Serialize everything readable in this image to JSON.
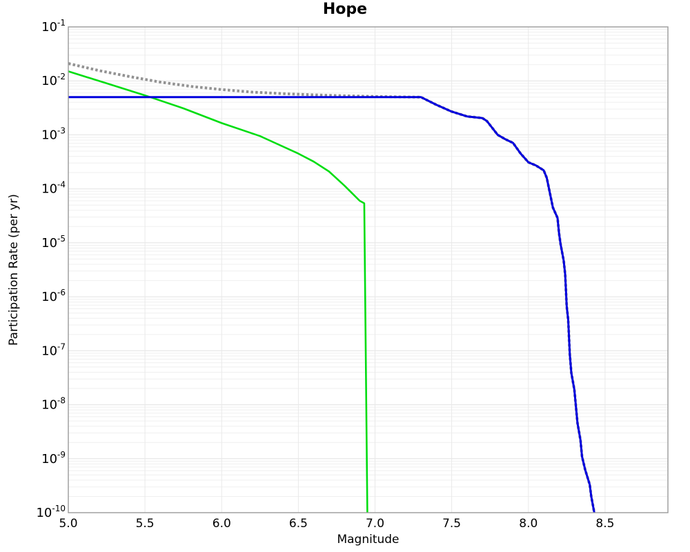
{
  "chart_data": {
    "type": "line",
    "title": "Hope",
    "xlabel": "Magnitude",
    "ylabel": "Participation Rate (per yr)",
    "x_min": 5.0,
    "x_max": 8.91,
    "y_exp_top": -1,
    "y_exp_bottom": -10,
    "x_ticks": [
      5.0,
      5.5,
      6.0,
      6.5,
      7.0,
      7.5,
      8.0,
      8.5
    ],
    "x_tick_labels": [
      "5.0",
      "5.5",
      "6.0",
      "6.5",
      "7.0",
      "7.5",
      "8.0",
      "8.5"
    ],
    "y_tick_exponents": [
      "-1",
      "-2",
      "-3",
      "-4",
      "-5",
      "-6",
      "-7",
      "-8",
      "-9",
      "-10"
    ],
    "grid": {
      "vertical_step": 0.5,
      "log_minor_lines": true,
      "legend": "none"
    },
    "colors": {
      "minor_grid": "#efefef",
      "major_grid": "#e2e2e2",
      "vertical_grid": "#e9e9e9",
      "frame": "#9a9a9a",
      "text": "#000000"
    },
    "series": [
      {
        "name": "dotted-gray-curve",
        "style": "dotted",
        "color": "#929292",
        "width": 4,
        "points": [
          [
            5.0,
            0.021
          ],
          [
            5.2,
            0.0155
          ],
          [
            5.4,
            0.012
          ],
          [
            5.6,
            0.0095
          ],
          [
            5.8,
            0.0079
          ],
          [
            6.0,
            0.0069
          ],
          [
            6.2,
            0.0062
          ],
          [
            6.4,
            0.0058
          ],
          [
            6.6,
            0.0055
          ],
          [
            6.8,
            0.0053
          ],
          [
            7.0,
            0.00515
          ],
          [
            7.15,
            0.00505
          ],
          [
            7.3,
            0.005
          ],
          [
            7.4,
            0.0036
          ],
          [
            7.5,
            0.0027
          ],
          [
            7.6,
            0.0022
          ],
          [
            7.7,
            0.00205
          ],
          [
            7.73,
            0.0018
          ],
          [
            7.8,
            0.001
          ],
          [
            7.85,
            0.00083
          ],
          [
            7.9,
            0.00071
          ],
          [
            7.95,
            0.00045
          ],
          [
            8.0,
            0.00031
          ],
          [
            8.05,
            0.00027
          ],
          [
            8.1,
            0.00022
          ],
          [
            8.12,
            0.00016
          ],
          [
            8.16,
            4.5e-05
          ],
          [
            8.19,
            2.9e-05
          ],
          [
            8.2,
            1.5e-05
          ],
          [
            8.21,
            9.5e-06
          ],
          [
            8.23,
            4.7e-06
          ],
          [
            8.24,
            2.6e-06
          ],
          [
            8.25,
            6.7e-07
          ],
          [
            8.26,
            3.7e-07
          ],
          [
            8.27,
            8.6e-08
          ],
          [
            8.28,
            3.9e-08
          ],
          [
            8.3,
            1.9e-08
          ],
          [
            8.32,
            4.6e-09
          ],
          [
            8.34,
            2.2e-09
          ],
          [
            8.35,
            1.1e-09
          ],
          [
            8.37,
            6.3e-10
          ],
          [
            8.4,
            3.3e-10
          ],
          [
            8.41,
            2e-10
          ],
          [
            8.43,
            1e-10
          ]
        ]
      },
      {
        "name": "green-curve",
        "style": "solid",
        "color": "#00dd11",
        "width": 2.6,
        "points": [
          [
            5.0,
            0.015
          ],
          [
            5.25,
            0.009
          ],
          [
            5.5,
            0.0054
          ],
          [
            5.75,
            0.0031
          ],
          [
            6.0,
            0.00165
          ],
          [
            6.25,
            0.00095
          ],
          [
            6.5,
            0.00045
          ],
          [
            6.6,
            0.00032
          ],
          [
            6.7,
            0.00021
          ],
          [
            6.8,
            0.000115
          ],
          [
            6.9,
            6e-05
          ],
          [
            6.93,
            5.4e-05
          ],
          [
            6.95,
            1e-10
          ]
        ]
      },
      {
        "name": "blue-curve",
        "style": "solid",
        "color": "#0000dd",
        "width": 3,
        "points": [
          [
            5.0,
            0.005
          ],
          [
            7.3,
            0.005
          ],
          [
            7.4,
            0.0036
          ],
          [
            7.5,
            0.0027
          ],
          [
            7.6,
            0.0022
          ],
          [
            7.7,
            0.00205
          ],
          [
            7.73,
            0.0018
          ],
          [
            7.8,
            0.001
          ],
          [
            7.85,
            0.00083
          ],
          [
            7.9,
            0.00071
          ],
          [
            7.95,
            0.00045
          ],
          [
            8.0,
            0.00031
          ],
          [
            8.05,
            0.00027
          ],
          [
            8.1,
            0.00022
          ],
          [
            8.12,
            0.00016
          ],
          [
            8.16,
            4.5e-05
          ],
          [
            8.19,
            2.9e-05
          ],
          [
            8.2,
            1.5e-05
          ],
          [
            8.21,
            9.5e-06
          ],
          [
            8.23,
            4.7e-06
          ],
          [
            8.24,
            2.6e-06
          ],
          [
            8.25,
            6.7e-07
          ],
          [
            8.26,
            3.7e-07
          ],
          [
            8.27,
            8.6e-08
          ],
          [
            8.28,
            3.9e-08
          ],
          [
            8.3,
            1.9e-08
          ],
          [
            8.32,
            4.6e-09
          ],
          [
            8.34,
            2.2e-09
          ],
          [
            8.35,
            1.1e-09
          ],
          [
            8.37,
            6.3e-10
          ],
          [
            8.4,
            3.3e-10
          ],
          [
            8.41,
            2e-10
          ],
          [
            8.43,
            1e-10
          ]
        ]
      }
    ]
  }
}
